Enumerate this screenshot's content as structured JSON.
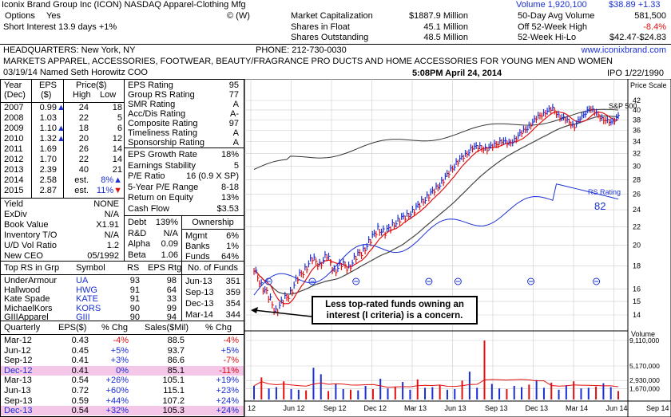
{
  "header": {
    "company": "Iconix Brand Group Inc (ICON) NASDAQ Apparel-Clothing Mfg",
    "volume": "Volume 1,920,100",
    "price": "$38.89 +1.33",
    "options": "Options",
    "options_val": "Yes",
    "option_codes": "©  (W)",
    "short_interest": "Short Interest 13.9 days  +1%",
    "market_cap_label": "Market Capitalization",
    "market_cap": "$1887.9 Million",
    "float_label": "Shares in Float",
    "float": "45.1 Million",
    "outstanding_label": "Shares Outstanding",
    "outstanding": "48.5 Million",
    "avg_vol_label": "50-Day Avg Volume",
    "avg_vol": "581,500",
    "off_high_label": "Off 52-Week High",
    "off_high": "-8.4%",
    "hilo_label": "52-Week Hi-Lo",
    "hilo": "$42.47-$24.83",
    "hq": "HEADQUARTERS: New York, NY",
    "phone": "PHONE: 212-730-0030",
    "website": "www.iconixbrand.com",
    "description": "MARKETS APPAREL, ACCESSORIES, FOOTWEAR, BEAUTY/FRAGRANCE PRO DUCTS AND HOME ACCESSORIES FOR YOUNG MEN AND WOMEN",
    "news": "03/19/14  Named Seth Horowitz COO",
    "timestamp": "5:08PM  April 24, 2014",
    "ipo": "IPO 1/22/1990"
  },
  "annual": {
    "h_year": "Year",
    "h_dec": "(Dec)",
    "h_eps": "EPS",
    "h_usd": "($)",
    "h_price": "Price($)",
    "h_high": "High",
    "h_low": "Low",
    "rows": [
      {
        "year": "2007",
        "eps": "0.99",
        "arrow": "▲",
        "high": "24",
        "low": "18"
      },
      {
        "year": "2008",
        "eps": "1.03",
        "arrow": "",
        "high": "22",
        "low": "5"
      },
      {
        "year": "2009",
        "eps": "1.10",
        "arrow": "▲",
        "high": "18",
        "low": "6"
      },
      {
        "year": "2010",
        "eps": "1.32",
        "arrow": "▲",
        "high": "20",
        "low": "12"
      },
      {
        "year": "2011",
        "eps": "1.69",
        "arrow": "",
        "high": "26",
        "low": "14"
      },
      {
        "year": "2012",
        "eps": "1.70",
        "arrow": "",
        "high": "22",
        "low": "14"
      },
      {
        "year": "2013",
        "eps": "2.39",
        "arrow": "",
        "high": "40",
        "low": "21"
      },
      {
        "year": "2014",
        "eps": "2.58",
        "arrow": "",
        "high": "est.",
        "low": "8%▲"
      },
      {
        "year": "2015",
        "eps": "2.87",
        "arrow": "",
        "high": "est.",
        "low": "11%▼"
      }
    ]
  },
  "misc": [
    {
      "label": "Yield",
      "value": "NONE"
    },
    {
      "label": "ExDiv",
      "value": "N/A"
    },
    {
      "label": "Book Value",
      "value": "X1.91"
    },
    {
      "label": "Inventory T/O",
      "value": "N/A"
    },
    {
      "label": "U/D Vol Ratio",
      "value": "1.2"
    },
    {
      "label": "New CEO",
      "value": "05/1992"
    }
  ],
  "ratings": [
    {
      "label": "EPS Rating",
      "value": "95"
    },
    {
      "label": "Group RS Rating",
      "value": "77"
    },
    {
      "label": "SMR Rating",
      "value": "A"
    },
    {
      "label": "Acc/Dis Rating",
      "value": "A-"
    },
    {
      "label": "Composite Rating",
      "value": "97"
    },
    {
      "label": "Timeliness Rating",
      "value": "A"
    },
    {
      "label": "Sponsorship Rating",
      "value": "A"
    }
  ],
  "fundamentals": [
    {
      "label": "EPS Growth Rate",
      "value": "18%"
    },
    {
      "label": "Earnings Stability",
      "value": "5"
    },
    {
      "label": "P/E Ratio",
      "value": "16 (0.9 X SP)"
    },
    {
      "label": "5-Year P/E Range",
      "value": "8-18"
    },
    {
      "label": "Return on Equity",
      "value": "13%"
    },
    {
      "label": "Cash Flow",
      "value": "$3.53"
    }
  ],
  "debt": [
    {
      "label": "Debt",
      "value": "139%"
    },
    {
      "label": "R&D",
      "value": "N/A"
    },
    {
      "label": "Alpha",
      "value": "0.09"
    },
    {
      "label": "Beta",
      "value": "1.06"
    }
  ],
  "ownership": {
    "title": "Ownership",
    "rows": [
      {
        "label": "Mgmt",
        "value": "6%"
      },
      {
        "label": "Banks",
        "value": "1%"
      },
      {
        "label": "Funds",
        "value": "64%"
      }
    ]
  },
  "peers": {
    "h_name": "Top RS in Grp",
    "h_symbol": "Symbol",
    "h_rs": "RS",
    "h_eps": "EPS Rtg",
    "rows": [
      {
        "name": "UnderArmour",
        "symbol": "UA",
        "rs": "93",
        "eps": "98"
      },
      {
        "name": "Hallwood",
        "symbol": "HWG",
        "rs": "91",
        "eps": "64"
      },
      {
        "name": "Kate Spade",
        "symbol": "KATE",
        "rs": "91",
        "eps": "33"
      },
      {
        "name": "MichaelKors",
        "symbol": "KORS",
        "rs": "90",
        "eps": "99"
      },
      {
        "name": "GIIIApparel",
        "symbol": "GIII",
        "rs": "90",
        "eps": "94"
      }
    ]
  },
  "funds": {
    "title": "No. of Funds",
    "rows": [
      {
        "date": "Jun-13",
        "value": "351"
      },
      {
        "date": "Sep-13",
        "value": "359"
      },
      {
        "date": "Dec-13",
        "value": "354"
      },
      {
        "date": "Mar-14",
        "value": "344"
      }
    ]
  },
  "quarterly": {
    "h_q": "Quarterly",
    "h_eps": "EPS($)",
    "h_chg": "% Chg",
    "h_sales": "Sales($Mil)",
    "h_schg": "% Chg",
    "rows": [
      {
        "q": "Mar-12",
        "eps": "0.43",
        "chg": "-4%",
        "sales": "88.5",
        "schg": "-4%",
        "hl": false
      },
      {
        "q": "Jun-12",
        "eps": "0.45",
        "chg": "+5%",
        "sales": "93.7",
        "schg": "+5%",
        "hl": false
      },
      {
        "q": "Sep-12",
        "eps": "0.41",
        "chg": "+3%",
        "sales": "86.6",
        "schg": "-7%",
        "hl": false
      },
      {
        "q": "Dec-12",
        "eps": "0.41",
        "chg": "0%",
        "sales": "85.1",
        "schg": "-11%",
        "hl": true
      },
      {
        "q": "Mar-13",
        "eps": "0.54",
        "chg": "+26%",
        "sales": "105.1",
        "schg": "+19%",
        "hl": false
      },
      {
        "q": "Jun-13",
        "eps": "0.72",
        "chg": "+60%",
        "sales": "115.1",
        "schg": "+23%",
        "hl": false
      },
      {
        "q": "Sep-13",
        "eps": "0.59",
        "chg": "+44%",
        "sales": "107.2",
        "schg": "+24%",
        "hl": false
      },
      {
        "q": "Dec-13",
        "eps": "0.54",
        "chg": "+32%",
        "sales": "105.3",
        "schg": "+24%",
        "hl": true
      }
    ]
  },
  "annotation": "Less top-rated funds owning an interest (I criteria) is a concern.",
  "chart_data": {
    "type": "line",
    "price_scale_label": "Price Scale",
    "price_ticks": [
      "42",
      "40",
      "38",
      "36",
      "34",
      "32",
      "30",
      "28",
      "26",
      "24",
      "22",
      "20",
      "18",
      "16",
      "15",
      "14"
    ],
    "x_labels": [
      "12",
      "Jun 12",
      "Sep 12",
      "Dec 12",
      "Mar 13",
      "Jun 13",
      "Sep 13",
      "Dec 13",
      "Mar 14",
      "Jun 14",
      "Sep 14"
    ],
    "sp500_label": "S&P 500",
    "rs_label": "RS Rating",
    "rs_value": "82",
    "volume_label": "Volume",
    "volume_ticks": [
      "9,110,000",
      "5,170,000",
      "2,930,000",
      "1,670,000"
    ],
    "price_series": [
      {
        "t": 0,
        "v": 17.5
      },
      {
        "t": 0.02,
        "v": 16.5
      },
      {
        "t": 0.04,
        "v": 15.2
      },
      {
        "t": 0.06,
        "v": 14.4
      },
      {
        "t": 0.08,
        "v": 14.9
      },
      {
        "t": 0.1,
        "v": 15.8
      },
      {
        "t": 0.12,
        "v": 16.8
      },
      {
        "t": 0.14,
        "v": 17.8
      },
      {
        "t": 0.16,
        "v": 18.6
      },
      {
        "t": 0.18,
        "v": 18.2
      },
      {
        "t": 0.2,
        "v": 18.9
      },
      {
        "t": 0.22,
        "v": 17.6
      },
      {
        "t": 0.24,
        "v": 18.1
      },
      {
        "t": 0.26,
        "v": 17.9
      },
      {
        "t": 0.28,
        "v": 18.8
      },
      {
        "t": 0.3,
        "v": 19.5
      },
      {
        "t": 0.32,
        "v": 20.5
      },
      {
        "t": 0.34,
        "v": 21.8
      },
      {
        "t": 0.36,
        "v": 21.3
      },
      {
        "t": 0.38,
        "v": 22.2
      },
      {
        "t": 0.4,
        "v": 22.8
      },
      {
        "t": 0.42,
        "v": 23.3
      },
      {
        "t": 0.44,
        "v": 23.9
      },
      {
        "t": 0.46,
        "v": 25.0
      },
      {
        "t": 0.48,
        "v": 25.8
      },
      {
        "t": 0.5,
        "v": 26.8
      },
      {
        "t": 0.52,
        "v": 27.9
      },
      {
        "t": 0.54,
        "v": 29.4
      },
      {
        "t": 0.56,
        "v": 30.8
      },
      {
        "t": 0.58,
        "v": 31.7
      },
      {
        "t": 0.6,
        "v": 33.1
      },
      {
        "t": 0.62,
        "v": 33.0
      },
      {
        "t": 0.64,
        "v": 32.8
      },
      {
        "t": 0.66,
        "v": 33.4
      },
      {
        "t": 0.68,
        "v": 34.2
      },
      {
        "t": 0.7,
        "v": 33.6
      },
      {
        "t": 0.72,
        "v": 34.7
      },
      {
        "t": 0.74,
        "v": 35.9
      },
      {
        "t": 0.76,
        "v": 37.2
      },
      {
        "t": 0.78,
        "v": 38.6
      },
      {
        "t": 0.8,
        "v": 39.6
      },
      {
        "t": 0.82,
        "v": 40.2
      },
      {
        "t": 0.84,
        "v": 38.7
      },
      {
        "t": 0.86,
        "v": 37.8
      },
      {
        "t": 0.88,
        "v": 36.9
      },
      {
        "t": 0.9,
        "v": 38.5
      },
      {
        "t": 0.92,
        "v": 40.5
      },
      {
        "t": 0.94,
        "v": 39.2
      },
      {
        "t": 0.96,
        "v": 38.2
      },
      {
        "t": 0.98,
        "v": 37.3
      },
      {
        "t": 1.0,
        "v": 38.9
      }
    ],
    "volume_series_m": [
      2.1,
      3.4,
      1.7,
      1.9,
      2.8,
      1.6,
      1.5,
      1.4,
      4.9,
      3.9,
      1.3,
      2.4,
      1.6,
      1.5,
      1.4,
      2.1,
      1.6,
      3.2,
      1.7,
      1.9,
      2.7,
      1.5,
      3.1,
      1.8,
      1.9,
      2.2,
      1.5,
      1.6,
      2.9,
      4.3,
      1.8,
      9.1,
      2.4,
      1.7,
      1.6,
      2.1,
      1.9,
      2.3,
      3.0,
      1.8,
      2.6,
      1.5,
      2.2,
      2.8,
      1.7,
      1.8,
      2.0,
      2.5,
      1.9,
      1.3
    ]
  }
}
